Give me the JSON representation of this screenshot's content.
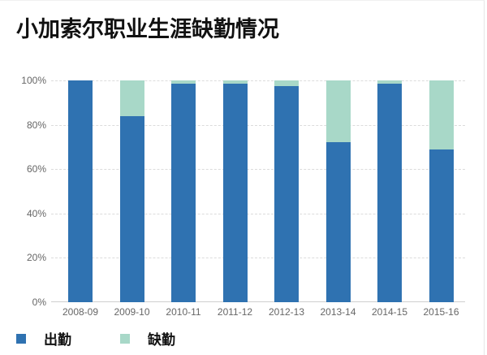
{
  "title": "小加索尔职业生涯缺勤情况",
  "colors": {
    "present": "#2f72b1",
    "absent": "#a8d8c8"
  },
  "legend": [
    {
      "label": "出勤",
      "color": "#2f72b1"
    },
    {
      "label": "缺勤",
      "color": "#a8d8c8"
    }
  ],
  "yticks": [
    "100%",
    "80%",
    "60%",
    "40%",
    "20%",
    "0%"
  ],
  "chart_data": {
    "type": "bar",
    "stacked": true,
    "normalized": true,
    "title": "小加索尔职业生涯缺勤情况",
    "xlabel": "",
    "ylabel": "",
    "ylim": [
      0,
      100
    ],
    "yticks": [
      "0%",
      "20%",
      "40%",
      "60%",
      "80%",
      "100%"
    ],
    "grid": true,
    "legend_position": "bottom-left",
    "categories": [
      "2008-09",
      "2009-10",
      "2010-11",
      "2011-12",
      "2012-13",
      "2013-14",
      "2014-15",
      "2015-16"
    ],
    "series": [
      {
        "name": "出勤",
        "values": [
          100,
          84,
          98.5,
          98.5,
          97.5,
          72,
          98.5,
          69
        ]
      },
      {
        "name": "缺勤",
        "values": [
          0,
          16,
          1.5,
          1.5,
          2.5,
          28,
          1.5,
          31
        ]
      }
    ]
  }
}
